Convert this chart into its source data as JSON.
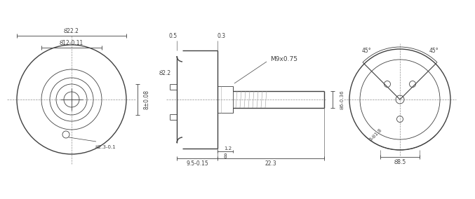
{
  "bg_color": "#ffffff",
  "line_color": "#404040",
  "dim_color": "#404040",
  "cl_color": "#909090",
  "thin_line": 0.6,
  "medium_line": 1.0,
  "fig_width": 6.77,
  "fig_height": 2.84,
  "annotations": {
    "d22_2": "Ȣ22.2",
    "d12_1": "Ȣ12-0.11",
    "d8_08": "8±0.08",
    "d2_3": "Ȣ2.3-0.1",
    "d2_2": "Ȣ2.2",
    "dim_9_5": "9.5-0.15",
    "dim_9_5_sup": "0",
    "dim_22_3": "22.3",
    "dim_8": "8",
    "dim_1_2": "1.2",
    "dim_0_5": "0.5",
    "dim_0_3": "0.3",
    "thread": "M9x0.75",
    "d6_dia": "Ȣ6-0.36",
    "d8_5": "Ȣ8.5",
    "d1_8": "3-Ȣ1.8",
    "ang_45_l": "45°",
    "ang_45_r": "45°"
  }
}
